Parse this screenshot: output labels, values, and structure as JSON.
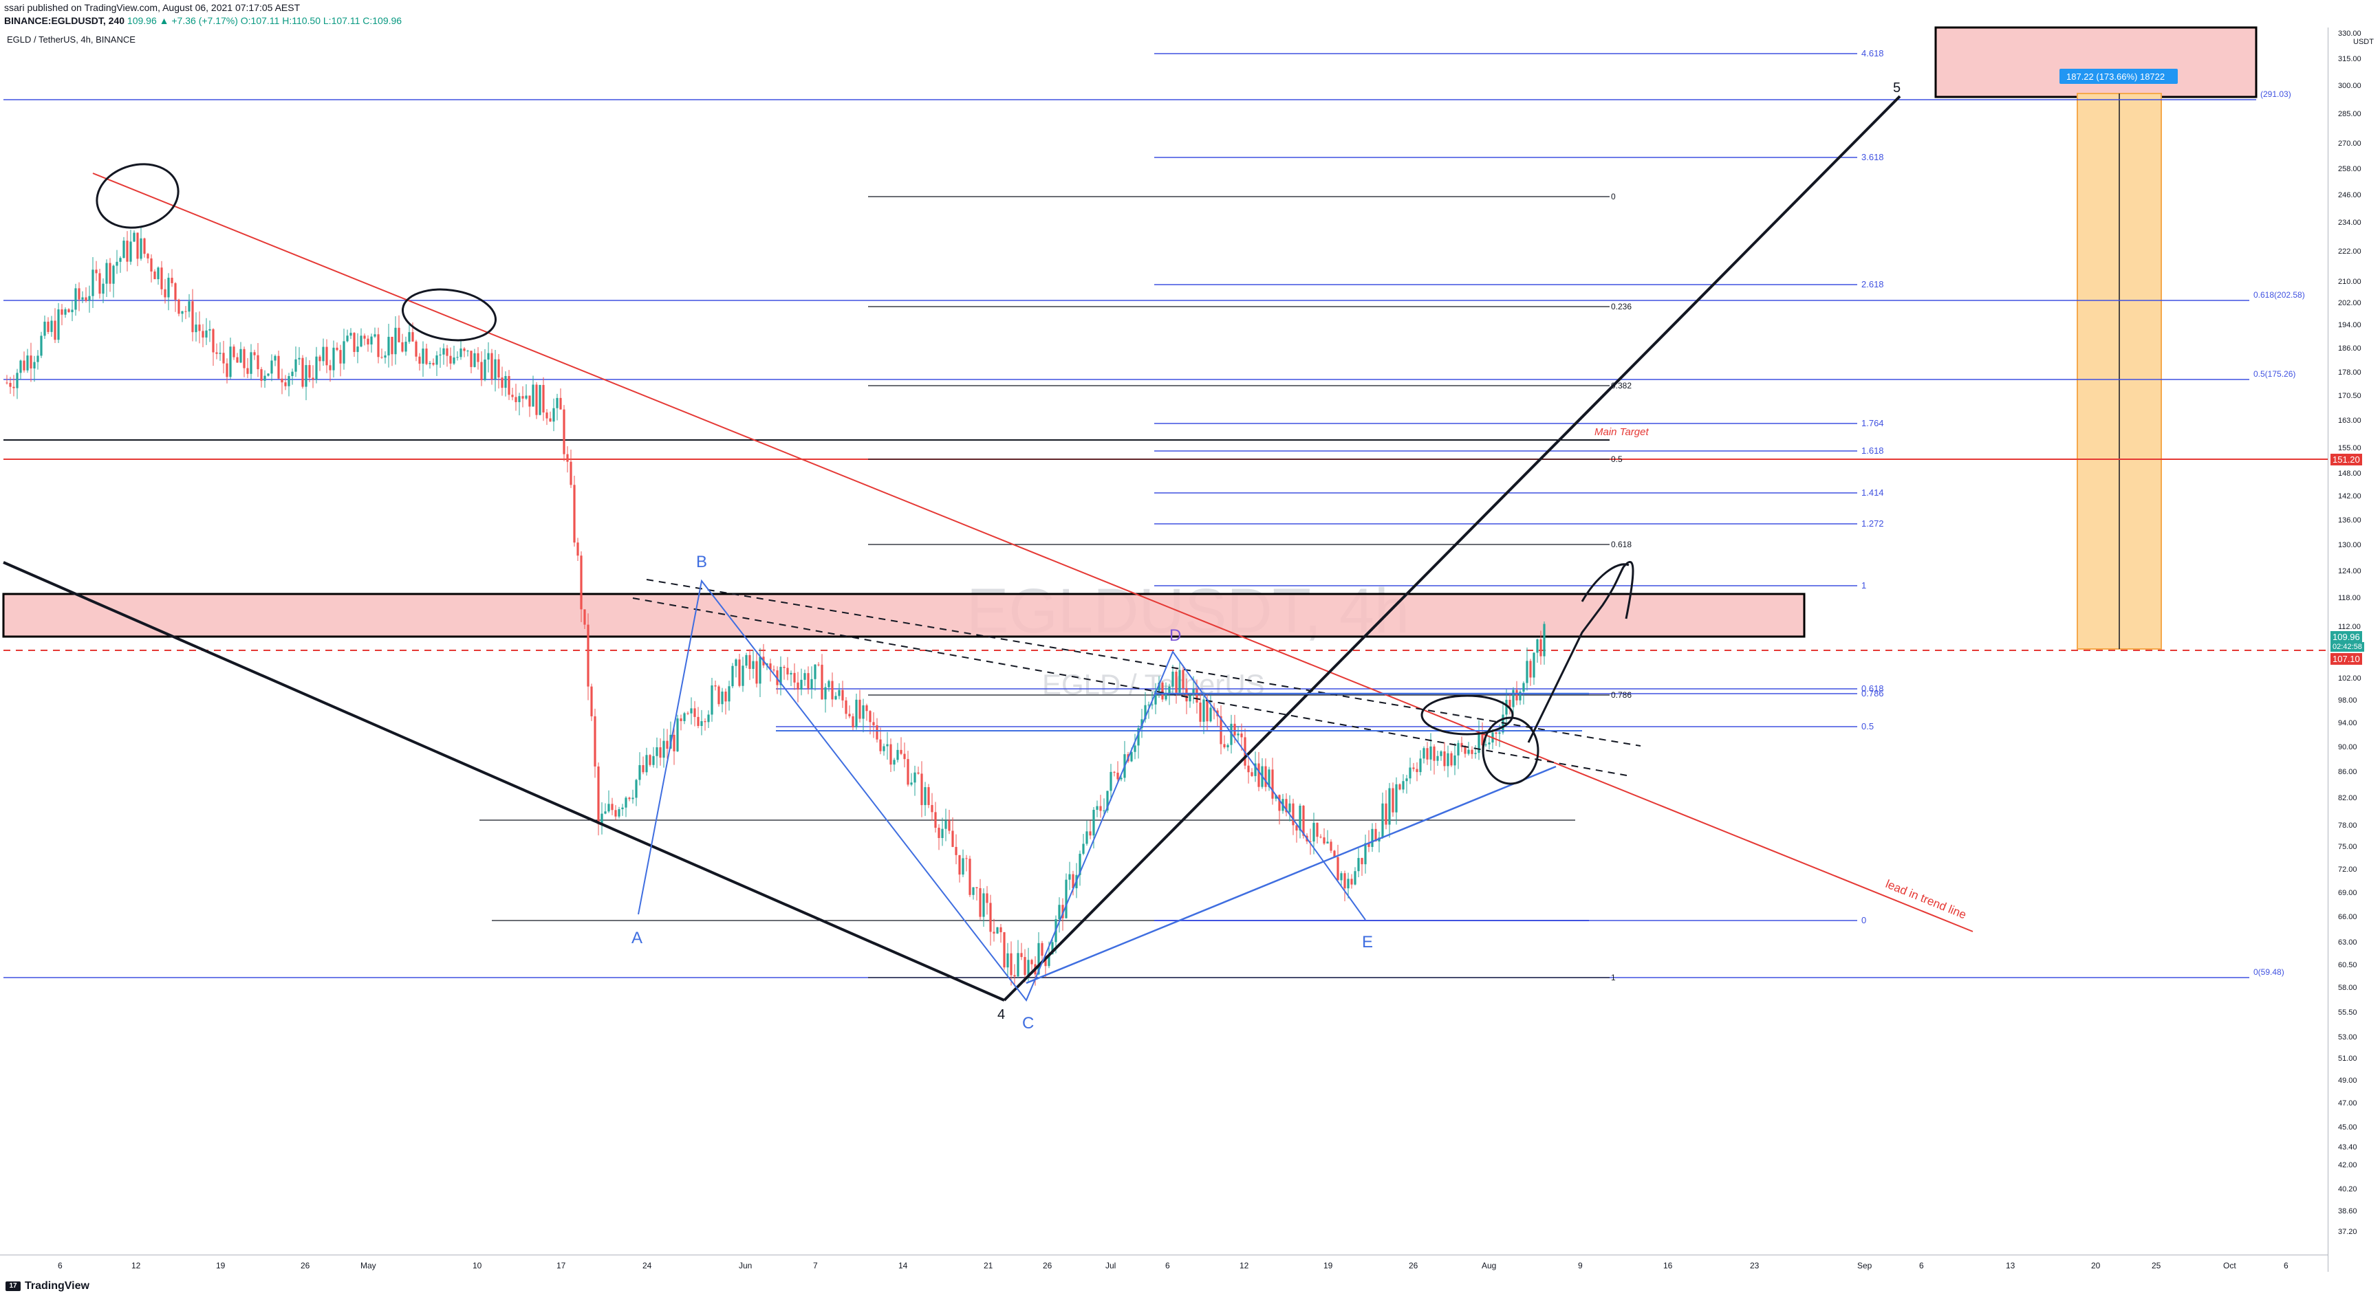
{
  "header": {
    "published": "ssari published on TradingView.com, August 06, 2021 07:17:05 AEST",
    "symbol_line_prefix": "BINANCE:EGLDUSDT, 240",
    "price_change": "109.96 ▲ +7.36 (+7.17%) O:107.11 H:110.50 L:107.11 C:109.96",
    "pair_title": "EGLD / TetherUS, 4h, BINANCE"
  },
  "watermark": {
    "main": "EGLDUSDT, 4h",
    "sub": "EGLD / TetherUS"
  },
  "footer": {
    "brand": "TradingView"
  },
  "axis": {
    "unit": "USDT",
    "price_labels": [
      "330.00",
      "315.00",
      "300.00",
      "285.00",
      "270.00",
      "258.00",
      "246.00",
      "234.00",
      "222.00",
      "210.00",
      "202.00",
      "194.00",
      "186.00",
      "178.00",
      "170.50",
      "163.00",
      "155.00",
      "148.00",
      "142.00",
      "136.00",
      "130.00",
      "124.00",
      "118.00",
      "112.00",
      "106.00",
      "102.00",
      "98.00",
      "94.00",
      "90.00",
      "86.00",
      "82.00",
      "78.00",
      "75.00",
      "72.00",
      "69.00",
      "66.00",
      "63.00",
      "60.50",
      "58.00",
      "55.50",
      "53.00",
      "51.00",
      "49.00",
      "47.00",
      "45.00",
      "43.40",
      "42.00",
      "40.20",
      "38.60",
      "37.20"
    ],
    "time_labels": [
      "6",
      "12",
      "19",
      "26",
      "May",
      "10",
      "17",
      "24",
      "Jun",
      "7",
      "14",
      "21",
      "26",
      "Jul",
      "6",
      "12",
      "19",
      "26",
      "Aug",
      "9",
      "16",
      "23",
      "Sep",
      "6",
      "13",
      "20",
      "25",
      "Oct",
      "6"
    ],
    "badge_current": "109.96",
    "badge_timer": "02:42:58",
    "badge_target": "151.20",
    "badge_red_dash": "107.10"
  },
  "fib_right": {
    "levels": [
      "4.618",
      "3.618",
      "2.618",
      "1.764",
      "1.618",
      "1.414",
      "1.272",
      "1",
      "0.786",
      "0.618",
      "0.5",
      "0"
    ]
  },
  "fib_mid": {
    "levels": [
      "0",
      "0.236",
      "0.382",
      "0.5",
      "0.618",
      "0.786",
      "1"
    ]
  },
  "fib_far": {
    "labels": [
      "(291.03)",
      "0.618(202.58)",
      "0.5(175.26)",
      "0(59.48)"
    ]
  },
  "annotations": {
    "main_target": "Main Target",
    "trend_line": "lead in trend line",
    "measure": "187.22 (173.66%) 18722",
    "points": [
      "A",
      "B",
      "C",
      "D",
      "E"
    ],
    "waves": [
      "4",
      "5"
    ]
  },
  "chart_data": {
    "type": "candlestick",
    "title": "EGLD / TetherUS, 4h, BINANCE",
    "x": [
      "Apr 6",
      "Apr 12",
      "Apr 19",
      "Apr 26",
      "May 3",
      "May 10",
      "May 17",
      "May 24",
      "Jun 1",
      "Jun 7",
      "Jun 14",
      "Jun 21",
      "Jun 26",
      "Jul 1",
      "Jul 6",
      "Jul 12",
      "Jul 19",
      "Jul 26",
      "Aug 2",
      "Aug 5"
    ],
    "close": [
      175,
      226,
      182,
      178,
      190,
      182,
      165,
      78,
      104,
      102,
      88,
      60,
      62,
      84,
      103,
      89,
      70,
      88,
      90,
      109.96
    ],
    "ylim": [
      36,
      335
    ],
    "y_scale": "log",
    "key_levels": {
      "main_target": 151.2,
      "current": 109.96,
      "red_dash": 107.1
    },
    "points": {
      "A": 66,
      "B": 121,
      "C": 57,
      "D": 108,
      "E": 66
    },
    "fib_extension_targets": {
      "1": 118.5,
      "1.272": 135.5,
      "1.414": 143.5,
      "1.618": 155.0,
      "1.764": 161.5,
      "2.618": 207.0,
      "3.618": 261.0,
      "4.618": 318.0
    }
  }
}
